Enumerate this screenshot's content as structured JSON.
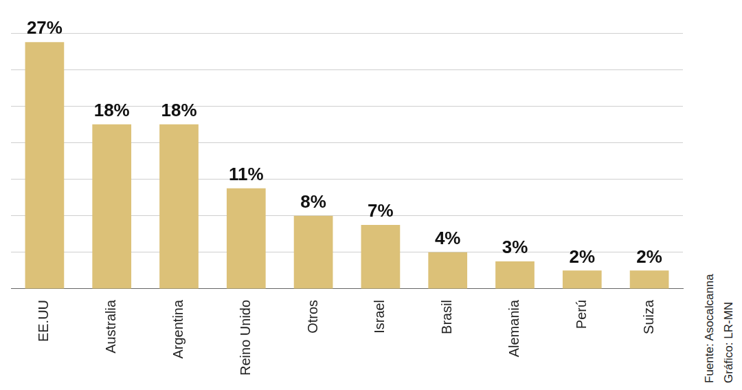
{
  "chart_data": {
    "type": "bar",
    "categories": [
      "EE.UU",
      "Australia",
      "Argentina",
      "Reino Unido",
      "Otros",
      "Israel",
      "Brasil",
      "Alemania",
      "Perú",
      "Suiza"
    ],
    "values": [
      27,
      18,
      18,
      11,
      8,
      7,
      4,
      3,
      2,
      2
    ],
    "value_labels": [
      "27%",
      "18%",
      "18%",
      "11%",
      "8%",
      "7%",
      "4%",
      "3%",
      "2%",
      "2%"
    ],
    "color": "#dcc178",
    "ylim": [
      0,
      28
    ],
    "yticks": [
      0,
      4,
      8,
      12,
      16,
      20,
      24,
      28
    ],
    "grid": true,
    "data_labels": true,
    "tick_labels": "x",
    "source": "Fuente: Asocalcanna",
    "credit": "Gráfico: LR-MN"
  }
}
